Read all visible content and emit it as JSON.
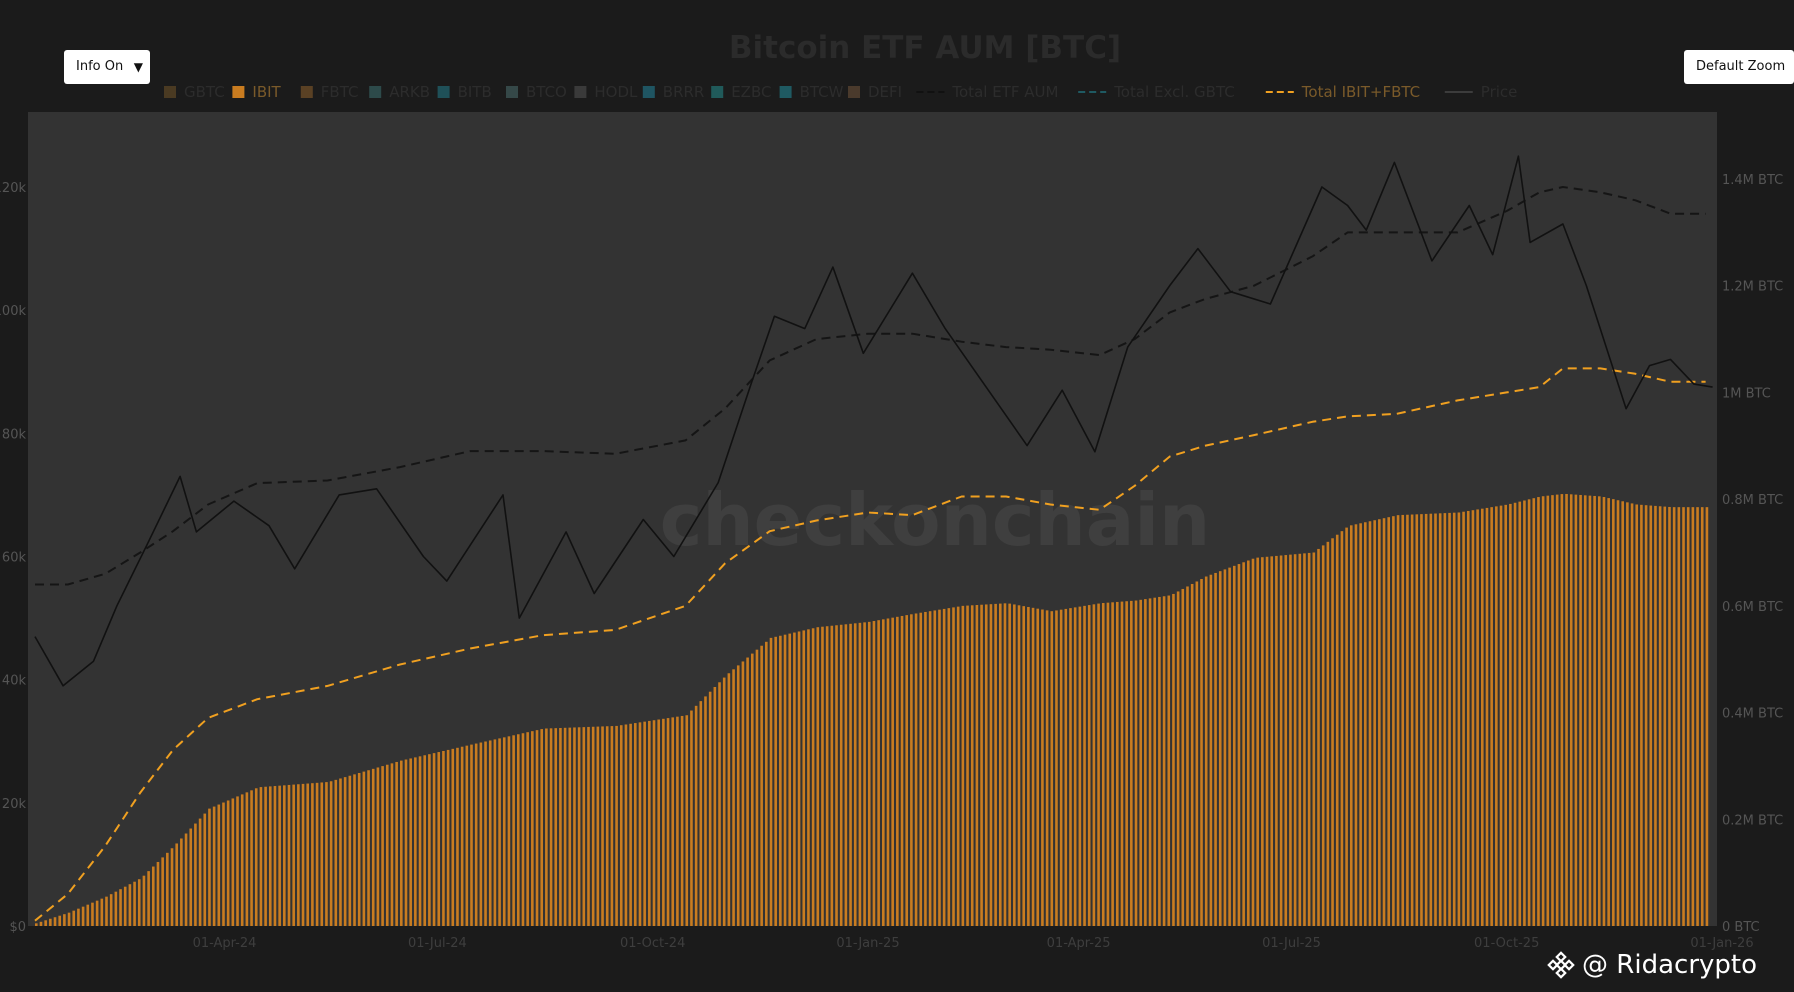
{
  "controls": {
    "info_label": "Info On",
    "zoom_label": "Default Zoom"
  },
  "watermark": "checkonchain",
  "attribution": {
    "text": "@ Ridacrypto",
    "icon": "binance-diamond-icon"
  },
  "colors": {
    "background": "#1b1b1b",
    "plot_bg": "#333333",
    "ibit": "#c97c20",
    "price": "#111111",
    "total_aum": "#151515",
    "ibit_fbtc": "#f0a020",
    "title": "#2a2a2a"
  },
  "chart_data": {
    "type": "bar",
    "title": "Bitcoin ETF AUM [BTC]",
    "legend_position": "top",
    "legend": [
      {
        "name": "GBTC",
        "style": "square",
        "color": "#4a3a22"
      },
      {
        "name": "IBIT",
        "style": "square",
        "color": "#c97c20"
      },
      {
        "name": "FBTC",
        "style": "square",
        "color": "#5a4124"
      },
      {
        "name": "ARKB",
        "style": "square",
        "color": "#2d4a4a"
      },
      {
        "name": "BITB",
        "style": "square",
        "color": "#1f5058"
      },
      {
        "name": "BTCO",
        "style": "square",
        "color": "#354848"
      },
      {
        "name": "HODL",
        "style": "square",
        "color": "#3a3a3a"
      },
      {
        "name": "BRRR",
        "style": "square",
        "color": "#1f5562"
      },
      {
        "name": "EZBC",
        "style": "square",
        "color": "#205a5a"
      },
      {
        "name": "BTCW",
        "style": "square",
        "color": "#1f5a62"
      },
      {
        "name": "DEFI",
        "style": "square",
        "color": "#4a3a2c"
      },
      {
        "name": "Total ETF AUM",
        "style": "dash",
        "color": "#111111"
      },
      {
        "name": "Total Excl. GBTC",
        "style": "dash",
        "color": "#1f5a62"
      },
      {
        "name": "Total IBIT+FBTC",
        "style": "dash",
        "color": "#f0a020"
      },
      {
        "name": "Price",
        "style": "line",
        "color": "#3c3c3c"
      }
    ],
    "x_range": [
      "2024-01-11",
      "2025-12-31"
    ],
    "x_ticks": [
      "01-Apr-24",
      "01-Jul-24",
      "01-Oct-24",
      "01-Jan-25",
      "01-Apr-25",
      "01-Jul-25",
      "01-Oct-25",
      "01-Jan-26"
    ],
    "x_tick_dates": [
      "2024-04-01",
      "2024-07-01",
      "2024-10-01",
      "2025-01-01",
      "2025-04-01",
      "2025-07-01",
      "2025-10-01",
      "2026-01-01"
    ],
    "y_left": {
      "label": "",
      "range": [
        0,
        130000
      ],
      "ticks": [
        0,
        20000,
        40000,
        60000,
        80000,
        100000,
        120000
      ],
      "tick_labels": [
        "$0",
        "20k",
        "40k",
        "60k",
        "80k",
        "100k",
        "120k"
      ]
    },
    "y_right": {
      "label": "",
      "range": [
        0,
        1460000
      ],
      "ticks": [
        0,
        200000,
        400000,
        600000,
        800000,
        1000000,
        1200000,
        1400000
      ],
      "tick_labels": [
        "0 BTC",
        "0.2M BTC",
        "0.4M BTC",
        "0.6M BTC",
        "0.8M BTC",
        "1M BTC",
        "1.2M BTC",
        "1.4M BTC"
      ]
    },
    "series": [
      {
        "name": "IBIT",
        "type": "bar",
        "axis": "right",
        "x": [
          "2024-01-11",
          "2024-01-25",
          "2024-02-10",
          "2024-02-25",
          "2024-03-10",
          "2024-03-25",
          "2024-04-15",
          "2024-05-15",
          "2024-06-15",
          "2024-07-15",
          "2024-08-15",
          "2024-09-15",
          "2024-10-15",
          "2024-11-01",
          "2024-11-20",
          "2024-12-10",
          "2025-01-01",
          "2025-01-20",
          "2025-02-10",
          "2025-03-01",
          "2025-03-20",
          "2025-04-10",
          "2025-04-25",
          "2025-05-10",
          "2025-05-25",
          "2025-06-15",
          "2025-07-10",
          "2025-07-25",
          "2025-08-15",
          "2025-09-10",
          "2025-10-01",
          "2025-10-15",
          "2025-10-25",
          "2025-11-10",
          "2025-11-25",
          "2025-12-10",
          "2025-12-25"
        ],
        "values": [
          5000,
          25000,
          55000,
          90000,
          150000,
          220000,
          260000,
          270000,
          310000,
          340000,
          370000,
          375000,
          395000,
          470000,
          540000,
          560000,
          570000,
          585000,
          600000,
          605000,
          590000,
          605000,
          610000,
          620000,
          655000,
          690000,
          700000,
          750000,
          770000,
          775000,
          790000,
          805000,
          810000,
          805000,
          790000,
          785000,
          785000
        ]
      },
      {
        "name": "Total IBIT+FBTC",
        "type": "line",
        "axis": "right",
        "dash": true,
        "x": [
          "2024-01-11",
          "2024-01-25",
          "2024-02-10",
          "2024-02-25",
          "2024-03-10",
          "2024-03-25",
          "2024-04-15",
          "2024-05-15",
          "2024-06-15",
          "2024-07-15",
          "2024-08-15",
          "2024-09-15",
          "2024-10-15",
          "2024-11-01",
          "2024-11-20",
          "2024-12-10",
          "2025-01-01",
          "2025-01-20",
          "2025-02-10",
          "2025-03-01",
          "2025-03-20",
          "2025-04-10",
          "2025-04-25",
          "2025-05-10",
          "2025-05-25",
          "2025-06-15",
          "2025-07-10",
          "2025-07-25",
          "2025-08-15",
          "2025-09-10",
          "2025-10-01",
          "2025-10-15",
          "2025-10-25",
          "2025-11-10",
          "2025-11-25",
          "2025-12-10",
          "2025-12-25"
        ],
        "values": [
          10000,
          60000,
          150000,
          250000,
          330000,
          390000,
          425000,
          450000,
          490000,
          520000,
          545000,
          555000,
          600000,
          680000,
          740000,
          760000,
          775000,
          770000,
          805000,
          805000,
          790000,
          780000,
          825000,
          880000,
          900000,
          920000,
          945000,
          955000,
          960000,
          985000,
          1000000,
          1010000,
          1045000,
          1045000,
          1035000,
          1020000,
          1020000
        ]
      },
      {
        "name": "Total ETF AUM",
        "type": "line",
        "axis": "right",
        "dash": true,
        "x": [
          "2024-01-11",
          "2024-01-25",
          "2024-02-10",
          "2024-02-25",
          "2024-03-10",
          "2024-03-25",
          "2024-04-15",
          "2024-05-15",
          "2024-06-15",
          "2024-07-15",
          "2024-08-15",
          "2024-09-15",
          "2024-10-15",
          "2024-11-01",
          "2024-11-20",
          "2024-12-10",
          "2025-01-01",
          "2025-01-20",
          "2025-02-10",
          "2025-03-01",
          "2025-03-20",
          "2025-04-10",
          "2025-04-25",
          "2025-05-10",
          "2025-05-25",
          "2025-06-15",
          "2025-07-10",
          "2025-07-25",
          "2025-08-15",
          "2025-09-10",
          "2025-10-01",
          "2025-10-15",
          "2025-10-25",
          "2025-11-10",
          "2025-11-25",
          "2025-12-10",
          "2025-12-25"
        ],
        "values": [
          640000,
          640000,
          660000,
          700000,
          740000,
          790000,
          830000,
          835000,
          860000,
          890000,
          890000,
          885000,
          910000,
          970000,
          1060000,
          1100000,
          1110000,
          1110000,
          1095000,
          1085000,
          1080000,
          1070000,
          1100000,
          1150000,
          1175000,
          1200000,
          1255000,
          1300000,
          1300000,
          1300000,
          1340000,
          1375000,
          1385000,
          1375000,
          1360000,
          1335000,
          1335000
        ]
      },
      {
        "name": "Price",
        "type": "line",
        "axis": "left",
        "x": [
          "2024-01-11",
          "2024-01-23",
          "2024-02-05",
          "2024-02-15",
          "2024-02-28",
          "2024-03-13",
          "2024-03-20",
          "2024-04-05",
          "2024-04-20",
          "2024-05-01",
          "2024-05-20",
          "2024-06-05",
          "2024-06-25",
          "2024-07-05",
          "2024-07-29",
          "2024-08-05",
          "2024-08-25",
          "2024-09-06",
          "2024-09-27",
          "2024-10-10",
          "2024-10-29",
          "2024-11-12",
          "2024-11-22",
          "2024-12-05",
          "2024-12-17",
          "2024-12-30",
          "2025-01-20",
          "2025-02-03",
          "2025-02-27",
          "2025-03-10",
          "2025-03-25",
          "2025-04-08",
          "2025-04-22",
          "2025-05-10",
          "2025-05-22",
          "2025-06-05",
          "2025-06-22",
          "2025-07-14",
          "2025-07-25",
          "2025-08-02",
          "2025-08-14",
          "2025-08-30",
          "2025-09-15",
          "2025-09-25",
          "2025-10-06",
          "2025-10-11",
          "2025-10-25",
          "2025-11-04",
          "2025-11-21",
          "2025-12-01",
          "2025-12-10",
          "2025-12-20",
          "2025-12-28"
        ],
        "values": [
          47000,
          39000,
          43000,
          52000,
          62000,
          73000,
          64000,
          69000,
          65000,
          58000,
          70000,
          71000,
          60000,
          56000,
          70000,
          50000,
          64000,
          54000,
          66000,
          60000,
          72000,
          88000,
          99000,
          97000,
          107000,
          93000,
          106000,
          97000,
          84000,
          78000,
          87000,
          77000,
          94000,
          104000,
          110000,
          103000,
          101000,
          120000,
          117000,
          113000,
          124000,
          108000,
          117000,
          109000,
          125000,
          111000,
          114000,
          104000,
          84000,
          91000,
          92000,
          88000,
          87500
        ]
      }
    ]
  }
}
